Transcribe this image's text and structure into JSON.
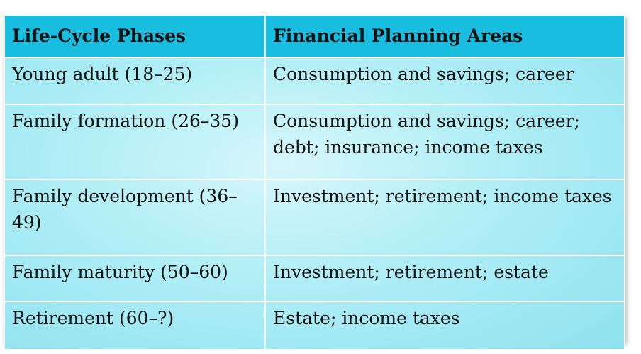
{
  "table": {
    "headers": [
      "Life-Cycle Phases",
      "Financial Planning Areas"
    ],
    "rows": [
      [
        "Young adult (18–25)",
        "Consumption and savings; career"
      ],
      [
        "Family formation (26–35)",
        "Consumption and savings; career; debt; insurance; income taxes"
      ],
      [
        "Family development (36–49)",
        "Investment; retirement; income taxes"
      ],
      [
        "Family maturity (50–60)",
        "Investment; retirement; estate"
      ],
      [
        "Retirement (60–?)",
        "Estate; income taxes"
      ]
    ]
  },
  "colors": {
    "header_bg": "#19bde0",
    "body_bg": "#b0eef6",
    "border": "#ffffff"
  }
}
